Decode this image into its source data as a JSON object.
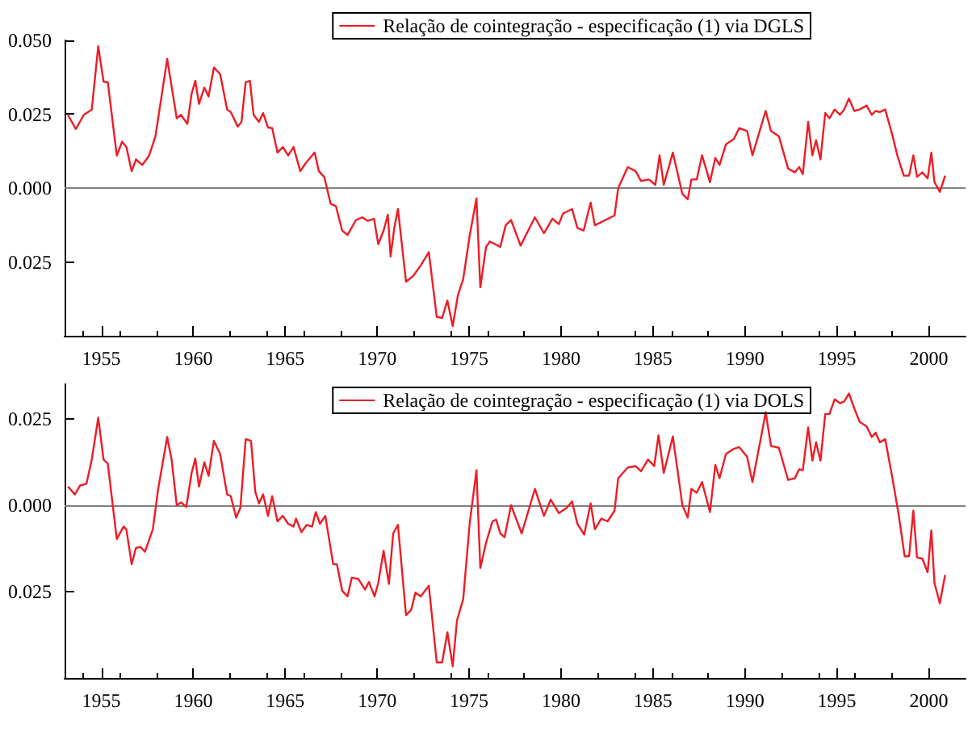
{
  "chart_data": [
    {
      "type": "line",
      "legend": "top right",
      "xlim": [
        1953,
        2002
      ],
      "xticks": [
        1955,
        1960,
        1965,
        1970,
        1975,
        1980,
        1985,
        1990,
        1995,
        2000
      ],
      "ylim": [
        -0.05,
        0.05
      ],
      "yticks": [
        {
          "value": -0.025,
          "label": "0.025"
        },
        {
          "value": 0,
          "label": "0.000"
        },
        {
          "value": 0.025,
          "label": "0.025"
        },
        {
          "value": 0.05,
          "label": "0.050"
        }
      ],
      "ref_lines": [
        {
          "axis": "y",
          "value": 0,
          "color": "#808080"
        }
      ],
      "series": [
        {
          "name": "Relação de cointegração - especificação (1) via DGLS",
          "color": "#ee1c25",
          "x": [
            1953.18,
            1953.61,
            1954.05,
            1954.48,
            1954.83,
            1955.12,
            1955.35,
            1955.84,
            1956.13,
            1956.36,
            1956.65,
            1956.88,
            1957.22,
            1957.6,
            1957.94,
            1958.58,
            1959.1,
            1959.33,
            1959.68,
            1959.91,
            1960.11,
            1960.31,
            1960.6,
            1960.83,
            1961.12,
            1961.46,
            1961.84,
            1962.04,
            1962.42,
            1962.62,
            1962.85,
            1963.08,
            1963.28,
            1963.57,
            1963.8,
            1964.06,
            1964.29,
            1964.58,
            1964.87,
            1965.16,
            1965.45,
            1965.82,
            1966.11,
            1966.46,
            1966.6,
            1966.83,
            1967.12,
            1967.47,
            1967.76,
            1968.1,
            1968.39,
            1968.85,
            1969.2,
            1969.49,
            1969.83,
            1970.06,
            1970.35,
            1970.58,
            1970.73,
            1970.93,
            1971.13,
            1971.57,
            1971.94,
            1972.37,
            1972.81,
            1973.24,
            1973.53,
            1973.82,
            1974.11,
            1974.39,
            1974.68,
            1975.03,
            1975.4,
            1975.61,
            1975.92,
            1976.13,
            1976.7,
            1976.99,
            1977.28,
            1977.8,
            1978.58,
            1979.07,
            1979.53,
            1979.88,
            1980.11,
            1980.6,
            1980.89,
            1981.23,
            1981.61,
            1981.84,
            1982.91,
            1983.11,
            1983.63,
            1984.06,
            1984.35,
            1984.78,
            1985.13,
            1985.36,
            1985.59,
            1986.08,
            1986.6,
            1986.89,
            1987.09,
            1987.38,
            1987.67,
            1988.1,
            1988.39,
            1988.62,
            1988.97,
            1989.4,
            1989.69,
            1990.12,
            1990.41,
            1991.13,
            1991.42,
            1991.85,
            1992.35,
            1992.72,
            1992.95,
            1993.15,
            1993.44,
            1993.67,
            1993.87,
            1994.11,
            1994.37,
            1994.6,
            1994.88,
            1995.17,
            1995.4,
            1995.66,
            1995.95,
            1996.24,
            1996.62,
            1996.9,
            1997.11,
            1997.34,
            1997.63,
            1998.0,
            1998.29,
            1998.64,
            1998.93,
            1999.16,
            1999.36,
            1999.65,
            1999.94,
            2000.14,
            2000.31,
            2000.6,
            2000.89
          ],
          "values": [
            0.0248,
            0.02,
            0.0248,
            0.0266,
            0.048,
            0.036,
            0.0358,
            0.011,
            0.0157,
            0.0139,
            0.0057,
            0.0097,
            0.0078,
            0.011,
            0.0175,
            0.0437,
            0.0236,
            0.0248,
            0.0217,
            0.032,
            0.0363,
            0.0285,
            0.034,
            0.031,
            0.0408,
            0.0386,
            0.0266,
            0.0257,
            0.0208,
            0.0224,
            0.0358,
            0.0363,
            0.0248,
            0.0224,
            0.0254,
            0.0205,
            0.0203,
            0.012,
            0.0139,
            0.011,
            0.0139,
            0.0057,
            0.0084,
            0.011,
            0.012,
            0.0057,
            0.0038,
            -0.0053,
            -0.0062,
            -0.0144,
            -0.0159,
            -0.0108,
            -0.0099,
            -0.0111,
            -0.0104,
            -0.019,
            -0.0144,
            -0.009,
            -0.0232,
            -0.0135,
            -0.0071,
            -0.0317,
            -0.0299,
            -0.0262,
            -0.0217,
            -0.0436,
            -0.044,
            -0.0381,
            -0.0467,
            -0.0363,
            -0.0308,
            -0.0162,
            -0.0035,
            -0.0336,
            -0.0199,
            -0.0181,
            -0.0199,
            -0.0126,
            -0.0108,
            -0.0195,
            -0.0099,
            -0.0153,
            -0.0104,
            -0.0122,
            -0.0086,
            -0.0071,
            -0.0135,
            -0.0144,
            -0.0049,
            -0.0126,
            -0.0093,
            0.0,
            0.0071,
            0.0057,
            0.0024,
            0.0029,
            0.0011,
            0.0111,
            0.0011,
            0.012,
            -0.002,
            -0.0038,
            0.0029,
            0.0029,
            0.0111,
            0.002,
            0.0102,
            0.0078,
            0.0148,
            0.0166,
            0.0203,
            0.0193,
            0.0111,
            0.0261,
            0.0193,
            0.0175,
            0.0066,
            0.0053,
            0.0071,
            0.0047,
            0.0224,
            0.0111,
            0.0162,
            0.0097,
            0.0254,
            0.0236,
            0.0266,
            0.0248,
            0.0266,
            0.0303,
            0.0261,
            0.0266,
            0.0279,
            0.0248,
            0.0261,
            0.0257,
            0.0266,
            0.0184,
            0.0111,
            0.0042,
            0.0042,
            0.0111,
            0.0038,
            0.0053,
            0.0033,
            0.012,
            0.002,
            -0.0013,
            0.0042
          ]
        }
      ]
    },
    {
      "type": "line",
      "legend": "top right",
      "xlim": [
        1953,
        2002
      ],
      "xticks": [
        1955,
        1960,
        1965,
        1970,
        1975,
        1980,
        1985,
        1990,
        1995,
        2000
      ],
      "ylim": [
        -0.05,
        0.035
      ],
      "yticks": [
        {
          "value": -0.025,
          "label": "0.025"
        },
        {
          "value": 0,
          "label": "0.000"
        },
        {
          "value": 0.025,
          "label": "0.025"
        }
      ],
      "ref_lines": [
        {
          "axis": "y",
          "value": 0,
          "color": "#808080"
        }
      ],
      "series": [
        {
          "name": "Relação de cointegração - especificação (1) via DOLS",
          "color": "#ee1c25",
          "x": [
            1953.18,
            1953.56,
            1953.85,
            1954.19,
            1954.48,
            1954.83,
            1955.12,
            1955.35,
            1955.84,
            1956.21,
            1956.36,
            1956.65,
            1956.88,
            1957.14,
            1957.37,
            1957.8,
            1958.09,
            1958.58,
            1958.82,
            1959.1,
            1959.33,
            1959.62,
            1959.91,
            1960.11,
            1960.31,
            1960.6,
            1960.83,
            1961.12,
            1961.46,
            1961.84,
            1962.04,
            1962.33,
            1962.56,
            1962.85,
            1963.14,
            1963.37,
            1963.57,
            1963.8,
            1964.06,
            1964.29,
            1964.58,
            1964.87,
            1965.16,
            1965.45,
            1965.59,
            1965.88,
            1966.17,
            1966.46,
            1966.66,
            1966.89,
            1967.18,
            1967.61,
            1967.81,
            1968.1,
            1968.39,
            1968.62,
            1968.97,
            1969.34,
            1969.55,
            1969.86,
            1970.06,
            1970.35,
            1970.64,
            1970.87,
            1971.13,
            1971.57,
            1971.85,
            1972.08,
            1972.37,
            1972.81,
            1973.24,
            1973.53,
            1973.82,
            1974.11,
            1974.34,
            1974.68,
            1975.03,
            1975.4,
            1975.61,
            1975.92,
            1976.27,
            1976.47,
            1976.7,
            1976.93,
            1977.28,
            1977.86,
            1978.58,
            1979.07,
            1979.44,
            1979.88,
            1980.31,
            1980.6,
            1980.89,
            1981.26,
            1981.61,
            1981.84,
            1982.19,
            1982.53,
            1982.91,
            1983.11,
            1983.63,
            1984.06,
            1984.35,
            1984.73,
            1985.07,
            1985.3,
            1985.59,
            1986.08,
            1986.6,
            1986.89,
            1987.09,
            1987.38,
            1987.67,
            1988.1,
            1988.39,
            1988.62,
            1988.97,
            1989.4,
            1989.69,
            1990.12,
            1990.41,
            1990.84,
            1991.13,
            1991.42,
            1991.85,
            1992.35,
            1992.72,
            1992.95,
            1993.15,
            1993.44,
            1993.67,
            1993.87,
            1994.11,
            1994.37,
            1994.6,
            1994.88,
            1995.17,
            1995.4,
            1995.66,
            1995.95,
            1996.24,
            1996.62,
            1996.9,
            1997.11,
            1997.34,
            1997.63,
            1998.0,
            1998.35,
            1998.69,
            1998.93,
            1999.16,
            1999.36,
            1999.65,
            1999.94,
            2000.14,
            2000.31,
            2000.6,
            2000.89
          ],
          "values": [
            0.0054,
            0.0031,
            0.0057,
            0.0062,
            0.0132,
            0.0253,
            0.0132,
            0.012,
            -0.0098,
            -0.0062,
            -0.007,
            -0.0171,
            -0.0124,
            -0.0121,
            -0.0135,
            -0.007,
            0.0047,
            0.0197,
            0.0132,
            0.0,
            0.0008,
            -0.0005,
            0.0093,
            0.0135,
            0.0054,
            0.0124,
            0.0085,
            0.0186,
            0.0148,
            0.0031,
            0.0026,
            -0.0036,
            -0.0008,
            0.0191,
            0.0186,
            0.0039,
            0.0005,
            0.0031,
            -0.0031,
            0.0026,
            -0.0047,
            -0.0031,
            -0.0054,
            -0.0062,
            -0.0039,
            -0.0078,
            -0.0057,
            -0.0062,
            -0.002,
            -0.0054,
            -0.0031,
            -0.0171,
            -0.0171,
            -0.0248,
            -0.0264,
            -0.021,
            -0.0213,
            -0.0244,
            -0.0222,
            -0.0264,
            -0.0225,
            -0.0132,
            -0.0228,
            -0.0082,
            -0.0057,
            -0.0318,
            -0.0303,
            -0.0253,
            -0.0264,
            -0.0233,
            -0.0455,
            -0.0455,
            -0.0368,
            -0.0466,
            -0.0334,
            -0.0272,
            -0.0054,
            0.0101,
            -0.0182,
            -0.0109,
            -0.0047,
            -0.0042,
            -0.0082,
            -0.0093,
            0.0,
            -0.0082,
            0.0047,
            -0.0031,
            0.0016,
            -0.0023,
            -0.0008,
            0.0011,
            -0.0054,
            -0.0085,
            0.0005,
            -0.007,
            -0.0039,
            -0.0047,
            -0.0016,
            0.0078,
            0.0109,
            0.0113,
            0.0098,
            0.0132,
            0.0113,
            0.0202,
            0.0093,
            0.0199,
            0.0,
            -0.0036,
            0.0047,
            0.0036,
            0.0067,
            -0.002,
            0.0116,
            0.0078,
            0.0148,
            0.0163,
            0.0168,
            0.014,
            0.0067,
            0.0186,
            0.0269,
            0.0171,
            0.0166,
            0.0073,
            0.0078,
            0.0104,
            0.0101,
            0.0225,
            0.0129,
            0.0182,
            0.0129,
            0.0264,
            0.0264,
            0.0306,
            0.0295,
            0.03,
            0.0323,
            0.028,
            0.0241,
            0.0228,
            0.0197,
            0.021,
            0.0182,
            0.0191,
            0.0085,
            -0.0023,
            -0.0148,
            -0.0148,
            -0.0016,
            -0.0151,
            -0.0155,
            -0.0194,
            -0.0073,
            -0.0225,
            -0.0284,
            -0.0202
          ]
        }
      ]
    }
  ]
}
